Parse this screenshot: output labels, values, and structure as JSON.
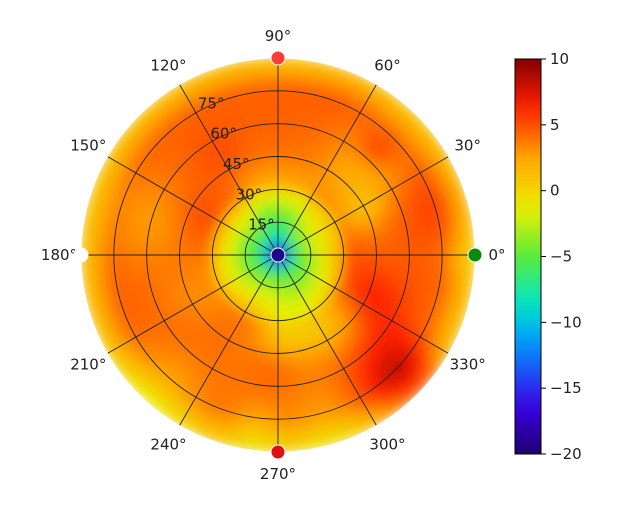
{
  "chart_data": {
    "type": "heatmap",
    "subtype": "polar",
    "title": "",
    "colormap": "jet-like (dark blue → blue → cyan → green → yellow → orange → red → dark red)",
    "color_range": [
      -20,
      10
    ],
    "angular_ticks": [
      "0°",
      "30°",
      "60°",
      "90°",
      "120°",
      "150°",
      "180°",
      "210°",
      "240°",
      "270°",
      "300°",
      "330°"
    ],
    "angular_tick_values_deg": [
      0,
      30,
      60,
      90,
      120,
      150,
      180,
      210,
      240,
      270,
      300,
      330
    ],
    "radial_ticks": [
      "15°",
      "30°",
      "45°",
      "60°",
      "75°"
    ],
    "radial_tick_values": [
      15,
      30,
      45,
      60,
      75
    ],
    "radial_max": 90,
    "grid": true,
    "colorbar": {
      "position": "right",
      "ticks": [
        "10",
        "5",
        "0",
        "−5",
        "−10",
        "−15",
        "−20"
      ],
      "tick_values": [
        10,
        5,
        0,
        -5,
        -10,
        -15,
        -20
      ]
    },
    "description_values": {
      "center_value": -20,
      "inner_region_range": [
        -8,
        0
      ],
      "mid_ring_range": [
        3,
        7
      ],
      "outer_edge_range": [
        0,
        3
      ]
    },
    "markers": [
      {
        "angle_deg": 90,
        "radius": 90,
        "color": "#ff3b3b"
      },
      {
        "angle_deg": 180,
        "radius": 90,
        "color": "#ffffff"
      },
      {
        "angle_deg": 270,
        "radius": 90,
        "color": "#e01010"
      },
      {
        "angle_deg": 0,
        "radius": 90,
        "color": "#0a8a0a"
      },
      {
        "angle_deg": 0,
        "radius": 0,
        "color": "#1a0a8a"
      }
    ],
    "colors": {
      "grid": "#222222",
      "axis_outline": "#000000"
    }
  }
}
